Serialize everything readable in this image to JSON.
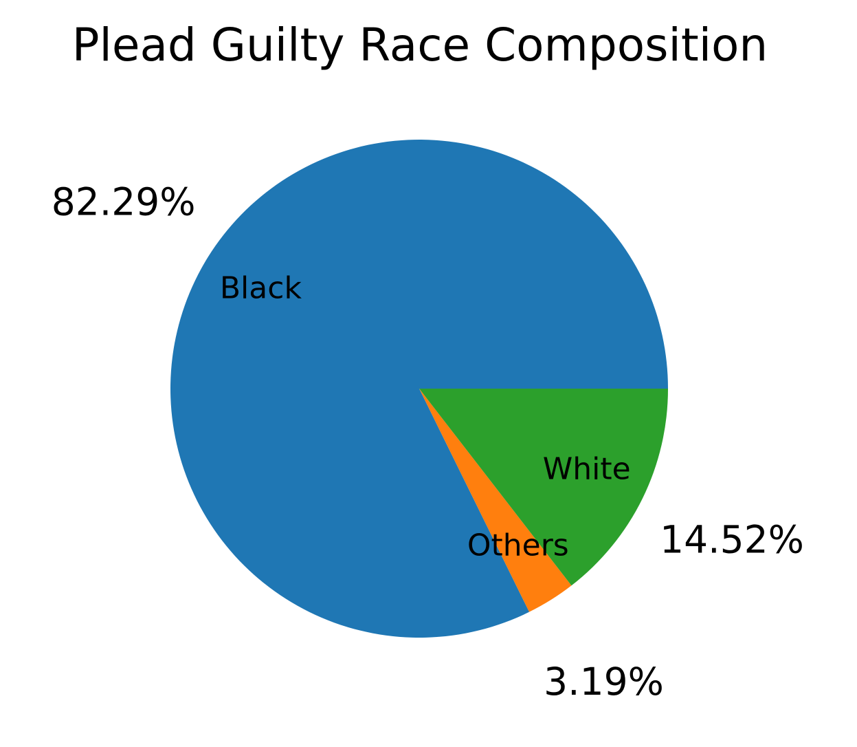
{
  "chart_data": {
    "type": "pie",
    "title": "Plead Guilty Race Composition",
    "slices": [
      {
        "label": "Black",
        "value": 82.29,
        "pct_label": "82.29%",
        "color": "#1f77b4"
      },
      {
        "label": "Others",
        "value": 3.19,
        "pct_label": "3.19%",
        "color": "#ff7f0e"
      },
      {
        "label": "White",
        "value": 14.52,
        "pct_label": "14.52%",
        "color": "#2ca02c"
      }
    ],
    "start_angle": 0,
    "direction": "counterclockwise",
    "legend": "none"
  }
}
